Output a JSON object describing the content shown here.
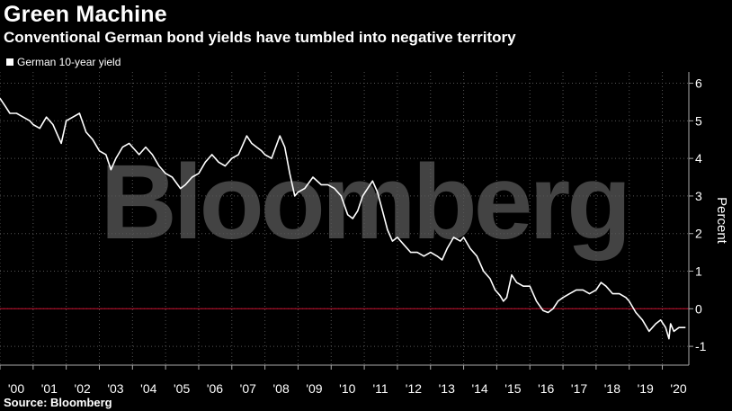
{
  "header": {
    "title": "Green Machine",
    "subtitle": "Conventional German bond yields have tumbled into negative territory"
  },
  "footer": {
    "source": "Source: Bloomberg"
  },
  "watermark": "Bloomberg",
  "colors": {
    "background": "#000000",
    "line": "#ffffff",
    "zero_line": "#c8102e",
    "grid": "#555555"
  },
  "chart_data": {
    "type": "line",
    "title": "Green Machine",
    "subtitle": "Conventional German bond yields have tumbled into negative territory",
    "ylabel": "Percent",
    "ylim": [
      -1.5,
      6.3
    ],
    "xlim": [
      2000.0,
      2020.8
    ],
    "yticks": [
      6,
      5,
      4,
      3,
      2,
      1,
      0,
      -1
    ],
    "xtick_labels": [
      "'00",
      "'01",
      "'02",
      "'03",
      "'04",
      "'05",
      "'06",
      "'07",
      "'08",
      "'09",
      "'10",
      "'11",
      "'12",
      "'13",
      "'14",
      "'15",
      "'16",
      "'17",
      "'18",
      "'19",
      "'20"
    ],
    "xtick_years": [
      2000,
      2001,
      2002,
      2003,
      2004,
      2005,
      2006,
      2007,
      2008,
      2009,
      2010,
      2011,
      2012,
      2013,
      2014,
      2015,
      2016,
      2017,
      2018,
      2019,
      2020
    ],
    "reference_line": 0,
    "legend_position": "top-left",
    "grid": true,
    "series": [
      {
        "name": "German 10-year yield",
        "x": [
          2000.0,
          2000.15,
          2000.3,
          2000.5,
          2000.7,
          2000.9,
          2001.0,
          2001.2,
          2001.4,
          2001.6,
          2001.75,
          2001.85,
          2002.0,
          2002.2,
          2002.4,
          2002.6,
          2002.8,
          2003.0,
          2003.2,
          2003.35,
          2003.5,
          2003.7,
          2003.9,
          2004.0,
          2004.2,
          2004.4,
          2004.6,
          2004.8,
          2005.0,
          2005.2,
          2005.45,
          2005.6,
          2005.8,
          2006.0,
          2006.2,
          2006.4,
          2006.6,
          2006.8,
          2007.0,
          2007.2,
          2007.45,
          2007.6,
          2007.75,
          2007.9,
          2008.0,
          2008.2,
          2008.45,
          2008.6,
          2008.75,
          2008.9,
          2009.0,
          2009.2,
          2009.45,
          2009.7,
          2009.9,
          2010.1,
          2010.3,
          2010.5,
          2010.65,
          2010.8,
          2010.95,
          2011.1,
          2011.25,
          2011.4,
          2011.55,
          2011.7,
          2011.85,
          2012.0,
          2012.2,
          2012.4,
          2012.6,
          2012.8,
          2013.0,
          2013.2,
          2013.35,
          2013.5,
          2013.7,
          2013.9,
          2014.0,
          2014.2,
          2014.4,
          2014.6,
          2014.8,
          2014.95,
          2015.1,
          2015.2,
          2015.3,
          2015.45,
          2015.6,
          2015.8,
          2016.0,
          2016.2,
          2016.4,
          2016.55,
          2016.7,
          2016.85,
          2017.0,
          2017.2,
          2017.4,
          2017.6,
          2017.8,
          2018.0,
          2018.15,
          2018.3,
          2018.5,
          2018.7,
          2018.9,
          2019.0,
          2019.2,
          2019.4,
          2019.6,
          2019.7,
          2019.8,
          2019.95,
          2020.1,
          2020.2,
          2020.25,
          2020.35,
          2020.5,
          2020.7
        ],
        "y": [
          5.6,
          5.4,
          5.2,
          5.2,
          5.1,
          5.0,
          4.9,
          4.8,
          5.1,
          4.9,
          4.6,
          4.4,
          5.0,
          5.1,
          5.2,
          4.7,
          4.5,
          4.2,
          4.1,
          3.7,
          4.0,
          4.3,
          4.4,
          4.3,
          4.1,
          4.3,
          4.1,
          3.8,
          3.6,
          3.5,
          3.2,
          3.3,
          3.5,
          3.6,
          3.9,
          4.1,
          3.9,
          3.8,
          4.0,
          4.1,
          4.6,
          4.4,
          4.3,
          4.2,
          4.1,
          4.0,
          4.6,
          4.3,
          3.6,
          3.0,
          3.1,
          3.2,
          3.5,
          3.3,
          3.3,
          3.2,
          3.0,
          2.5,
          2.4,
          2.6,
          3.0,
          3.2,
          3.4,
          3.1,
          2.6,
          2.1,
          1.8,
          1.9,
          1.7,
          1.5,
          1.5,
          1.4,
          1.5,
          1.4,
          1.3,
          1.6,
          1.9,
          1.8,
          1.9,
          1.6,
          1.4,
          1.0,
          0.8,
          0.5,
          0.35,
          0.2,
          0.3,
          0.9,
          0.7,
          0.6,
          0.6,
          0.2,
          -0.05,
          -0.1,
          0.0,
          0.2,
          0.3,
          0.4,
          0.5,
          0.5,
          0.4,
          0.5,
          0.7,
          0.6,
          0.4,
          0.4,
          0.3,
          0.2,
          -0.1,
          -0.3,
          -0.6,
          -0.5,
          -0.4,
          -0.3,
          -0.5,
          -0.8,
          -0.4,
          -0.6,
          -0.5,
          -0.5
        ]
      }
    ]
  }
}
